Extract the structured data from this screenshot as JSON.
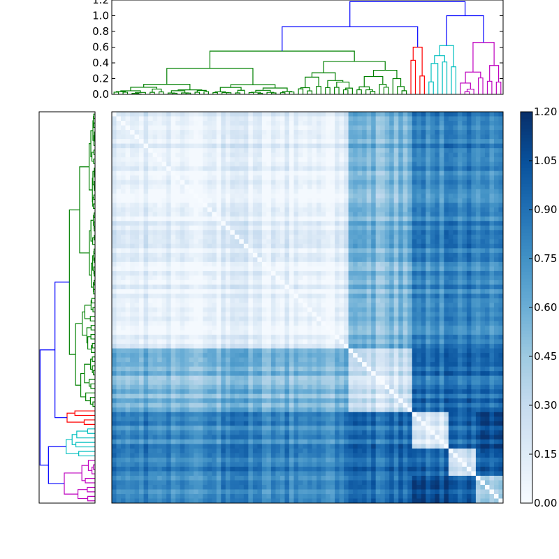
{
  "chart_data": [
    {
      "type": "dendrogram",
      "orientation": "top",
      "ylim": [
        0,
        1.2
      ],
      "yticks": [
        "0.0",
        "0.2",
        "0.4",
        "0.6",
        "0.8",
        "1.0",
        "1.2"
      ],
      "root_height": 1.18,
      "clusters": [
        {
          "name": "green",
          "color": "#008000",
          "leaves": 66,
          "merge_height": 0.55
        },
        {
          "name": "red",
          "color": "#ff0000",
          "leaves": 4,
          "merge_height": 0.6
        },
        {
          "name": "cyan",
          "color": "#00bfbf",
          "leaves": 7,
          "merge_height": 0.62
        },
        {
          "name": "magenta",
          "color": "#bf00bf",
          "leaves": 10,
          "merge_height": 0.66
        }
      ],
      "upper_links": [
        {
          "children": [
            "green",
            "red"
          ],
          "height": 0.86
        },
        {
          "children": [
            "cyan",
            "magenta"
          ],
          "height": 1.0
        },
        {
          "children": [
            "green+red",
            "cyan+magenta"
          ],
          "height": 1.18
        }
      ]
    },
    {
      "type": "dendrogram",
      "orientation": "left",
      "note_ticks": "none"
    },
    {
      "type": "heatmap",
      "colormap": "Blues",
      "vmin": 0.0,
      "vmax": 1.2,
      "colorbar_ticks": [
        "0.00",
        "0.15",
        "0.30",
        "0.45",
        "0.60",
        "0.75",
        "0.90",
        "1.05",
        "1.20"
      ],
      "block_mean_distances": [
        [
          0.1,
          0.55,
          0.78,
          0.85,
          0.72
        ],
        [
          0.55,
          0.25,
          0.9,
          0.95,
          0.85
        ],
        [
          0.78,
          0.9,
          0.15,
          0.95,
          1.0
        ],
        [
          0.85,
          0.95,
          0.95,
          0.3,
          0.95
        ],
        [
          0.72,
          0.85,
          1.0,
          0.95,
          0.3
        ]
      ],
      "block_sizes": [
        52,
        14,
        8,
        6,
        6
      ]
    }
  ]
}
